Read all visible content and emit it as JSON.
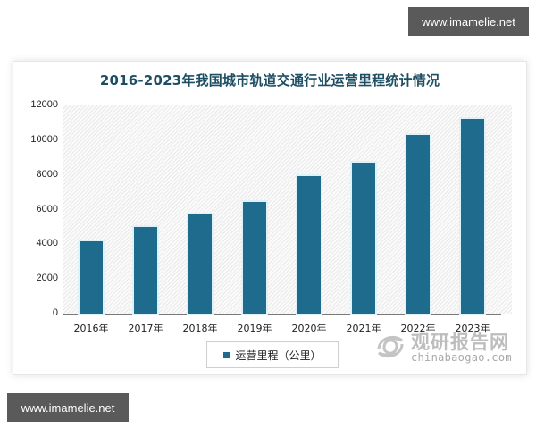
{
  "watermarks": {
    "top": "www.imamelie.net",
    "bottom": "www.imamelie.net"
  },
  "branding": {
    "cn": "观研报告网",
    "en": "chinabaogao.com"
  },
  "colors": {
    "bar": "#1f6b8e",
    "title": "#1d4e63"
  },
  "chart_data": {
    "type": "bar",
    "title": "2016-2023年我国城市轨道交通行业运营里程统计情况",
    "xlabel": "",
    "ylabel": "",
    "categories": [
      "2016年",
      "2017年",
      "2018年",
      "2019年",
      "2020年",
      "2021年",
      "2022年",
      "2023年"
    ],
    "series": [
      {
        "name": "运营里程（公里）",
        "values": [
          4150,
          5000,
          5740,
          6420,
          7950,
          8710,
          10300,
          11220
        ]
      }
    ],
    "yticks": [
      "0",
      "2000",
      "4000",
      "6000",
      "8000",
      "10000",
      "12000"
    ],
    "ylim": [
      0,
      12000
    ],
    "grid": false,
    "legend_position": "bottom"
  }
}
